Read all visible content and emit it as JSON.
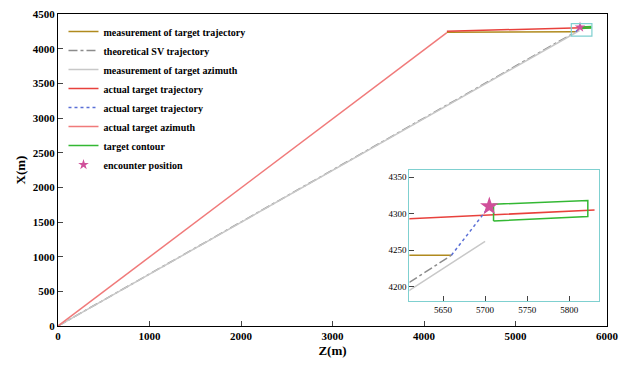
{
  "chart_data": {
    "type": "line",
    "xlabel": "Z(m)",
    "ylabel": "X(m)",
    "xlim": [
      0,
      6000
    ],
    "ylim": [
      0,
      4500
    ],
    "xticks": [
      0,
      1000,
      2000,
      3000,
      4000,
      5000,
      6000
    ],
    "yticks": [
      0,
      500,
      1000,
      1500,
      2000,
      2500,
      3000,
      3500,
      4000,
      4500
    ],
    "legend": "upper left",
    "grid": false,
    "inset": {
      "xlim": [
        5610,
        5835
      ],
      "ylim": [
        4180,
        4360
      ],
      "xticks": [
        5650,
        5700,
        5750,
        5800
      ],
      "yticks": [
        4200,
        4250,
        4300,
        4350
      ]
    },
    "series": [
      {
        "name": "measurement of target trajectory",
        "color": "#b08a1e",
        "line_style": "solid",
        "x": [
          4250,
          5660
        ],
        "y": [
          4236,
          4243
        ]
      },
      {
        "name": "theoretical SV trajectory",
        "color": "#8c8c8c",
        "line_style": "dashdot",
        "x": [
          0,
          5660
        ],
        "y": [
          0,
          4243
        ]
      },
      {
        "name": "measurement of target azimuth",
        "color": "#c8c8c8",
        "line_style": "solid",
        "x": [
          0,
          5700
        ],
        "y": [
          0,
          4262
        ]
      },
      {
        "name": "actual target trajectory",
        "color": "#e8413c",
        "line_style": "solid",
        "x": [
          4250,
          5610,
          5830
        ],
        "y": [
          4252,
          4293,
          4305
        ]
      },
      {
        "name": "actual target trajectory",
        "color": "#5a6fd6",
        "line_style": "dot",
        "x": [
          5660,
          5705
        ],
        "y": [
          4243,
          4310
        ]
      },
      {
        "name": "actual target azimuth",
        "color": "#f07a7a",
        "line_style": "solid",
        "x": [
          0,
          4250
        ],
        "y": [
          0,
          4232
        ]
      },
      {
        "name": "target contour",
        "color": "#33b833",
        "line_style": "solid",
        "x": [
          5710,
          5822,
          5822,
          5710,
          5710
        ],
        "y": [
          4290,
          4296,
          4318,
          4313,
          4290
        ]
      },
      {
        "name": "encounter position",
        "color": "#d0509a",
        "marker": "star",
        "x": [
          5705
        ],
        "y": [
          4310
        ]
      }
    ]
  }
}
